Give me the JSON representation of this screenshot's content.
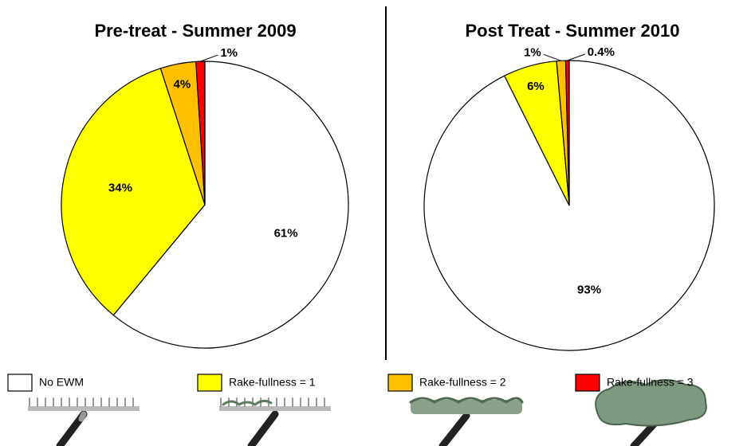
{
  "chart_data": [
    {
      "type": "pie",
      "title": "Pre-treat - Summer 2009",
      "categories": [
        "No EWM",
        "Rake-fullness = 1",
        "Rake-fullness = 2",
        "Rake-fullness = 3"
      ],
      "values": [
        61,
        34,
        4,
        1
      ],
      "value_labels": [
        "61%",
        "34%",
        "4%",
        "1%"
      ],
      "colors": [
        "#ffffff",
        "#ffff00",
        "#ffc000",
        "#ff0000"
      ]
    },
    {
      "type": "pie",
      "title": "Post Treat - Summer 2010",
      "categories": [
        "No EWM",
        "Rake-fullness = 1",
        "Rake-fullness = 2",
        "Rake-fullness = 3"
      ],
      "values": [
        93,
        6,
        1,
        0.4
      ],
      "value_labels": [
        "93%",
        "6%",
        "1%",
        "0.4%"
      ],
      "colors": [
        "#ffffff",
        "#ffff00",
        "#ffc000",
        "#ff0000"
      ]
    }
  ]
}
